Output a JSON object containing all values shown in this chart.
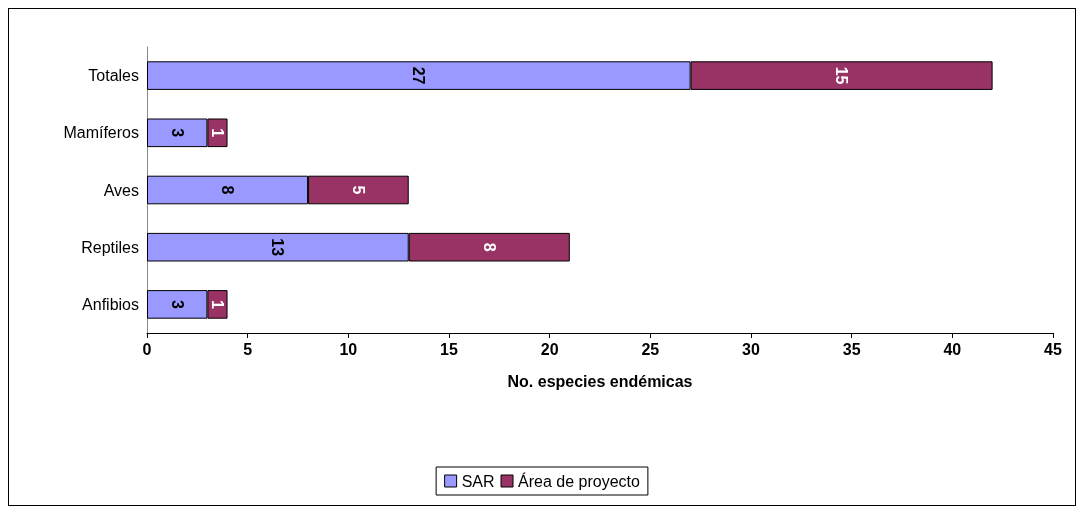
{
  "chart_data": {
    "type": "bar",
    "orientation": "horizontal",
    "stacked": true,
    "xlabel": "No. especies endémicas",
    "categories": [
      "Totales",
      "Mamíferos",
      "Aves",
      "Reptiles",
      "Anfibios"
    ],
    "series": [
      {
        "name": "SAR",
        "color": "#9999ff",
        "values": [
          27,
          3,
          8,
          13,
          3
        ]
      },
      {
        "name": "Área de proyecto",
        "color": "#993366",
        "values": [
          15,
          1,
          5,
          8,
          1
        ]
      }
    ],
    "xlim": [
      0,
      45
    ],
    "xticks": [
      0,
      5,
      10,
      15,
      20,
      25,
      30,
      35,
      40,
      45
    ],
    "grid": false,
    "legend": "bottom",
    "data_labels": true
  }
}
